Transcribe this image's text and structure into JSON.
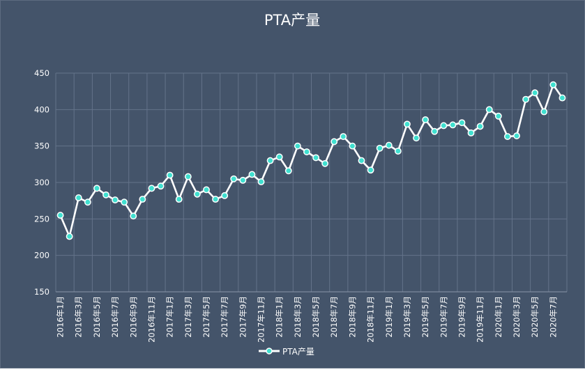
{
  "chart_data": {
    "type": "line",
    "title": "PTA产量",
    "xlabel": "",
    "ylabel": "",
    "ylim": [
      150,
      450
    ],
    "yticks": [
      150,
      200,
      250,
      300,
      350,
      400,
      450
    ],
    "grid": true,
    "legend_position": "bottom",
    "colors": {
      "background": "#44546a",
      "line": "#ffffff",
      "marker_fill": "#40e0d0",
      "marker_edge": "#ffffff",
      "grid": "#64738a"
    },
    "categories": [
      "2016年1月",
      "2016年2月",
      "2016年3月",
      "2016年4月",
      "2016年5月",
      "2016年6月",
      "2016年7月",
      "2016年8月",
      "2016年9月",
      "2016年10月",
      "2016年11月",
      "2016年12月",
      "2017年1月",
      "2017年2月",
      "2017年3月",
      "2017年4月",
      "2017年5月",
      "2017年6月",
      "2017年7月",
      "2017年8月",
      "2017年9月",
      "2017年10月",
      "2017年11月",
      "2017年12月",
      "2018年1月",
      "2018年2月",
      "2018年3月",
      "2018年4月",
      "2018年5月",
      "2018年6月",
      "2018年7月",
      "2018年8月",
      "2018年9月",
      "2018年10月",
      "2018年11月",
      "2018年12月",
      "2019年1月",
      "2019年2月",
      "2019年3月",
      "2019年4月",
      "2019年5月",
      "2019年6月",
      "2019年7月",
      "2019年8月",
      "2019年9月",
      "2019年10月",
      "2019年11月",
      "2019年12月",
      "2020年1月",
      "2020年2月",
      "2020年3月",
      "2020年4月",
      "2020年5月",
      "2020年6月",
      "2020年7月",
      "2020年8月"
    ],
    "category_labels": [
      "2016年1月",
      "",
      "2016年3月",
      "",
      "2016年5月",
      "",
      "2016年7月",
      "",
      "2016年9月",
      "",
      "2016年11月",
      "",
      "2017年1月",
      "",
      "2017年3月",
      "",
      "2017年5月",
      "",
      "2017年7月",
      "",
      "2017年9月",
      "",
      "2017年11月",
      "",
      "2018年1月",
      "",
      "2018年3月",
      "",
      "2018年5月",
      "",
      "2018年7月",
      "",
      "2018年9月",
      "",
      "2018年11月",
      "",
      "2019年1月",
      "",
      "2019年3月",
      "",
      "2019年5月",
      "",
      "2019年7月",
      "",
      "2019年9月",
      "",
      "2019年11月",
      "",
      "2020年1月",
      "",
      "2020年3月",
      "",
      "2020年5月",
      "",
      "2020年7月",
      ""
    ],
    "series": [
      {
        "name": "PTA产量",
        "values": [
          255,
          226,
          279,
          273,
          292,
          283,
          276,
          273,
          254,
          277,
          292,
          295,
          310,
          277,
          308,
          284,
          290,
          277,
          282,
          305,
          303,
          311,
          301,
          330,
          335,
          316,
          350,
          342,
          334,
          326,
          356,
          363,
          350,
          330,
          317,
          347,
          351,
          343,
          380,
          361,
          386,
          370,
          378,
          379,
          382,
          368,
          377,
          400,
          391,
          363,
          364,
          414,
          423,
          397,
          434,
          416
        ]
      }
    ]
  }
}
